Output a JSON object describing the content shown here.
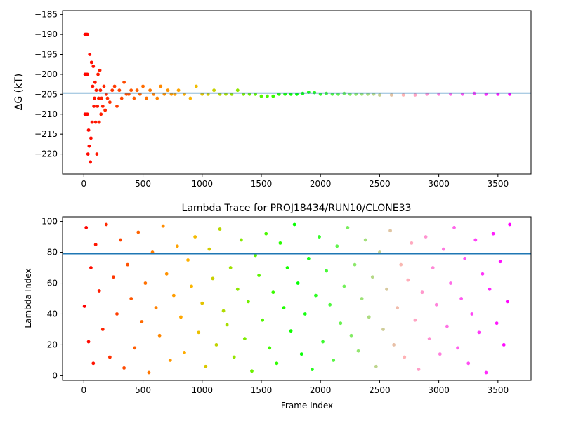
{
  "chart_data": [
    {
      "type": "scatter",
      "title": "",
      "xlabel": "",
      "ylabel": "ΔG (kT)",
      "xlim": [
        -180,
        3780
      ],
      "ylim": [
        -225,
        -184
      ],
      "xticks": [
        0,
        500,
        1000,
        1500,
        2000,
        2500,
        3000,
        3500
      ],
      "xtick_labels": [
        "0",
        "500",
        "1000",
        "1500",
        "2000",
        "2500",
        "3000",
        "3500"
      ],
      "yticks": [
        -185,
        -190,
        -195,
        -200,
        -205,
        -210,
        -215,
        -220
      ],
      "ytick_labels": [
        "−185",
        "−190",
        "−195",
        "−200",
        "−205",
        "−210",
        "−215",
        "−220"
      ],
      "colormap": "rainbow (red at frame 0 → violet at frame 3600)",
      "hline": {
        "y": -204.7,
        "color": "#1f77b4"
      },
      "grid": false,
      "legend": "none",
      "series": [
        {
          "x": [
            10,
            15,
            20,
            25,
            30,
            10,
            20,
            30,
            10,
            20,
            30,
            35,
            40,
            45,
            50,
            55,
            60,
            65,
            70,
            75,
            80,
            85,
            90,
            95,
            100,
            105,
            110,
            115,
            120,
            125,
            130,
            135,
            140,
            145,
            150,
            160,
            170,
            180,
            190,
            200,
            220,
            240,
            260,
            280,
            300,
            320,
            340,
            360,
            380,
            400,
            425,
            450,
            475,
            500,
            530,
            560,
            590,
            620,
            650,
            680,
            710,
            740,
            770,
            800,
            850,
            900,
            950,
            1000,
            1050,
            1100,
            1150,
            1200,
            1250,
            1300,
            1350,
            1400,
            1450,
            1500,
            1550,
            1600,
            1650,
            1700,
            1750,
            1800,
            1850,
            1900,
            1950,
            2000,
            2050,
            2100,
            2150,
            2200,
            2250,
            2300,
            2350,
            2400,
            2450,
            2500,
            2600,
            2700,
            2800,
            2900,
            3000,
            3100,
            3200,
            3300,
            3400,
            3500,
            3600
          ],
          "y": [
            -190,
            -190,
            -190,
            -190,
            -190,
            -210,
            -210,
            -210,
            -200,
            -200,
            -200,
            -220,
            -214,
            -218,
            -195,
            -222,
            -216,
            -197,
            -212,
            -203,
            -198,
            -208,
            -206,
            -202,
            -212,
            -204,
            -220,
            -208,
            -200,
            -206,
            -212,
            -199,
            -204,
            -210,
            -206,
            -208,
            -203,
            -209,
            -205,
            -206,
            -207,
            -204,
            -203,
            -208,
            -204,
            -206,
            -202,
            -205,
            -205,
            -204,
            -206,
            -204,
            -205,
            -203,
            -206,
            -204,
            -205,
            -206,
            -203,
            -205,
            -204,
            -205,
            -205,
            -204,
            -205,
            -206,
            -203,
            -205,
            -205,
            -204,
            -205,
            -205,
            -205,
            -204,
            -205,
            -205,
            -205,
            -205.5,
            -205.5,
            -205.5,
            -205,
            -205,
            -205,
            -205,
            -204.8,
            -204.5,
            -204.6,
            -205,
            -204.8,
            -205,
            -205,
            -204.8,
            -205,
            -205,
            -205,
            -205,
            -205,
            -205.2,
            -205.2,
            -205.2,
            -205.2,
            -205,
            -205,
            -205,
            -205,
            -204.8,
            -205,
            -205,
            -205
          ]
        }
      ]
    },
    {
      "type": "scatter",
      "title": "Lambda Trace for PROJ18434/RUN10/CLONE33",
      "xlabel": "Frame Index",
      "ylabel": "Lambda Index",
      "xlim": [
        -180,
        3780
      ],
      "ylim": [
        -3,
        103
      ],
      "xticks": [
        0,
        500,
        1000,
        1500,
        2000,
        2500,
        3000,
        3500
      ],
      "xtick_labels": [
        "0",
        "500",
        "1000",
        "1500",
        "2000",
        "2500",
        "3000",
        "3500"
      ],
      "yticks": [
        0,
        20,
        40,
        60,
        80,
        100
      ],
      "ytick_labels": [
        "0",
        "20",
        "40",
        "60",
        "80",
        "100"
      ],
      "colormap": "rainbow (red at frame 0 → violet at frame 3600)",
      "hline": {
        "y": 79,
        "color": "#1f77b4"
      },
      "grid": false,
      "legend": "none",
      "series": [
        {
          "x": [
            5,
            20,
            40,
            60,
            80,
            100,
            130,
            160,
            190,
            220,
            250,
            280,
            310,
            340,
            370,
            400,
            430,
            460,
            490,
            520,
            550,
            580,
            610,
            640,
            670,
            700,
            730,
            760,
            790,
            820,
            850,
            880,
            910,
            940,
            970,
            1000,
            1030,
            1060,
            1090,
            1120,
            1150,
            1180,
            1210,
            1240,
            1270,
            1300,
            1330,
            1360,
            1390,
            1420,
            1450,
            1480,
            1510,
            1540,
            1570,
            1600,
            1630,
            1660,
            1690,
            1720,
            1750,
            1780,
            1810,
            1840,
            1870,
            1900,
            1930,
            1960,
            1990,
            2020,
            2050,
            2080,
            2110,
            2140,
            2170,
            2200,
            2230,
            2260,
            2290,
            2320,
            2350,
            2380,
            2410,
            2440,
            2470,
            2500,
            2530,
            2560,
            2590,
            2620,
            2650,
            2680,
            2710,
            2740,
            2770,
            2800,
            2830,
            2860,
            2890,
            2920,
            2950,
            2980,
            3010,
            3040,
            3070,
            3100,
            3130,
            3160,
            3190,
            3220,
            3250,
            3280,
            3310,
            3340,
            3370,
            3400,
            3430,
            3460,
            3490,
            3520,
            3550,
            3580,
            3600
          ],
          "y": [
            45,
            96,
            22,
            70,
            8,
            85,
            55,
            30,
            98,
            12,
            64,
            40,
            88,
            5,
            72,
            50,
            18,
            93,
            35,
            60,
            2,
            80,
            44,
            26,
            97,
            66,
            10,
            52,
            84,
            38,
            15,
            75,
            58,
            90,
            28,
            47,
            6,
            82,
            63,
            20,
            95,
            42,
            33,
            70,
            12,
            56,
            88,
            24,
            48,
            3,
            78,
            65,
            36,
            92,
            18,
            54,
            8,
            86,
            44,
            70,
            29,
            98,
            60,
            14,
            40,
            76,
            4,
            52,
            90,
            22,
            68,
            46,
            10,
            84,
            34,
            58,
            96,
            26,
            72,
            16,
            50,
            88,
            38,
            64,
            6,
            80,
            30,
            56,
            94,
            20,
            44,
            72,
            12,
            62,
            86,
            36,
            4,
            54,
            90,
            24,
            70,
            46,
            14,
            82,
            32,
            60,
            96,
            18,
            50,
            76,
            8,
            40,
            88,
            28,
            66,
            2,
            56,
            92,
            34,
            74,
            20,
            48,
            98
          ]
        }
      ]
    }
  ]
}
